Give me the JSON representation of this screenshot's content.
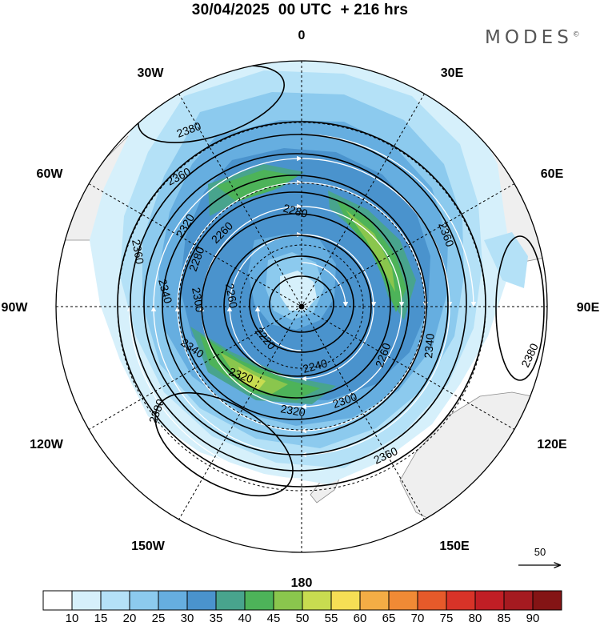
{
  "header": {
    "title": "30/04/2025  00 UTC  + 216 hrs",
    "brand": "MODES",
    "brand_mark": "©"
  },
  "longitude_labels": [
    "0",
    "30E",
    "60E",
    "90E",
    "120E",
    "150E",
    "180",
    "150W",
    "120W",
    "90W",
    "60W",
    "30W"
  ],
  "contour_labels": {
    "c2380": "2380",
    "c2360": "2360",
    "c2340": "2340",
    "c2320": "2320",
    "c2300": "2300",
    "c2280": "2280",
    "c2260": "2260",
    "c2240": "2240",
    "c2220": "2220"
  },
  "vector_legend": {
    "label": "50"
  },
  "colorbar": {
    "levels": [
      "10",
      "15",
      "20",
      "25",
      "30",
      "35",
      "40",
      "45",
      "50",
      "55",
      "60",
      "65",
      "70",
      "75",
      "80",
      "85",
      "90"
    ],
    "colors": [
      "#ffffff",
      "#d6f0fb",
      "#b4e1f7",
      "#8ccaee",
      "#66aee0",
      "#4a93cd",
      "#48a48d",
      "#4db359",
      "#8ac64d",
      "#c8dc50",
      "#f6df55",
      "#f4ad45",
      "#f08a35",
      "#e65a2a",
      "#d83328",
      "#c11e25",
      "#a51a20",
      "#841415"
    ]
  },
  "colors": {
    "land": "#efefef",
    "coast": "#8a8a8a",
    "wind_light": "#b4e1f7",
    "wind_mid": "#66aee0",
    "wind_core": "#4a93cd",
    "wind_green": "#4db359",
    "wind_yellow": "#c8dc50"
  }
}
